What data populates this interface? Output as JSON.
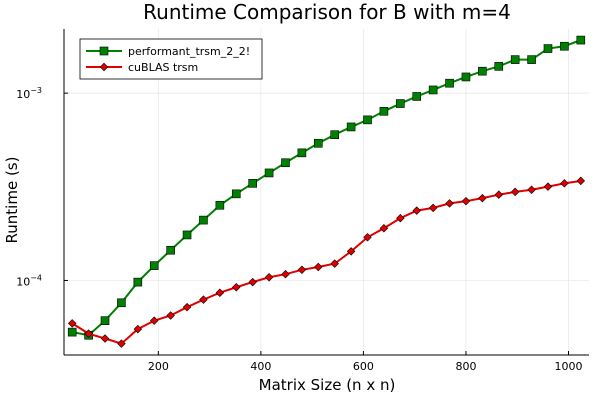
{
  "colors": {
    "series1": "#008000",
    "series2": "#e00000",
    "marker_edge": "#000000",
    "grid": "#e6e6e6",
    "axis": "#000000"
  },
  "chart_data": {
    "type": "line",
    "title": "Runtime Comparison for B with m=4",
    "xlabel": "Matrix Size (n x n)",
    "ylabel": "Runtime (s)",
    "yscale": "log",
    "grid": true,
    "legend_position": "top-left",
    "xlim": [
      16,
      1040
    ],
    "ylim": [
      4e-05,
      0.0022
    ],
    "x_ticks": [
      200,
      400,
      600,
      800,
      1000
    ],
    "x_tick_labels": [
      "200",
      "400",
      "600",
      "800",
      "1000"
    ],
    "y_ticks": [
      0.0001,
      0.001
    ],
    "y_tick_bases": [
      "10",
      "10"
    ],
    "y_tick_exponents": [
      "−4",
      "−3"
    ],
    "x": [
      32,
      64,
      96,
      128,
      160,
      192,
      224,
      256,
      288,
      320,
      352,
      384,
      416,
      448,
      480,
      512,
      544,
      576,
      608,
      640,
      672,
      704,
      736,
      768,
      800,
      832,
      864,
      896,
      928,
      960,
      992,
      1024
    ],
    "series": [
      {
        "name": "performant_trsm_2_2!",
        "marker": "square",
        "values": [
          5.3e-05,
          5.1e-05,
          6.1e-05,
          7.6e-05,
          9.8e-05,
          0.00012,
          0.000145,
          0.000175,
          0.00021,
          0.000252,
          0.00029,
          0.00033,
          0.000375,
          0.000425,
          0.00048,
          0.00054,
          0.0006,
          0.00066,
          0.00072,
          0.0008,
          0.00088,
          0.00096,
          0.00104,
          0.00113,
          0.00122,
          0.00131,
          0.00139,
          0.00151,
          0.00151,
          0.00173,
          0.00178,
          0.00192
        ]
      },
      {
        "name": "cuBLAS trsm",
        "marker": "diamond",
        "values": [
          5.9e-05,
          5.2e-05,
          4.9e-05,
          4.6e-05,
          5.5e-05,
          6.1e-05,
          6.5e-05,
          7.2e-05,
          7.9e-05,
          8.6e-05,
          9.2e-05,
          9.8e-05,
          0.000104,
          0.000108,
          0.000114,
          0.000118,
          0.000123,
          0.000143,
          0.00017,
          0.00019,
          0.000215,
          0.000236,
          0.000244,
          0.000258,
          0.000265,
          0.000275,
          0.000287,
          0.000297,
          0.000305,
          0.000317,
          0.00033,
          0.00034
        ]
      }
    ]
  }
}
